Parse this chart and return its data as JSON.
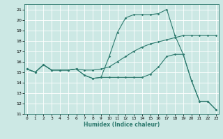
{
  "xlabel": "Humidex (Indice chaleur)",
  "ylabel": "",
  "bg_color": "#cce8e4",
  "line_color": "#2d7a6e",
  "grid_color": "#ffffff",
  "ylim": [
    11,
    21.5
  ],
  "xlim": [
    -0.3,
    23.3
  ],
  "yticks": [
    11,
    12,
    13,
    14,
    15,
    16,
    17,
    18,
    19,
    20,
    21
  ],
  "xticks": [
    0,
    1,
    2,
    3,
    4,
    5,
    6,
    7,
    8,
    9,
    10,
    11,
    12,
    13,
    14,
    15,
    16,
    17,
    18,
    19,
    20,
    21,
    22,
    23
  ],
  "line1_x": [
    0,
    1,
    2,
    3,
    4,
    5,
    6,
    7,
    8,
    9,
    10,
    11,
    12,
    13,
    14,
    15,
    16,
    17,
    18,
    19,
    20,
    21,
    22,
    23
  ],
  "line1_y": [
    15.3,
    15.0,
    15.7,
    15.2,
    15.2,
    15.2,
    15.3,
    14.7,
    14.4,
    14.5,
    16.5,
    18.8,
    20.2,
    20.5,
    20.5,
    20.5,
    20.6,
    21.0,
    18.5,
    16.7,
    14.2,
    12.2,
    12.2,
    11.4
  ],
  "line2_x": [
    0,
    1,
    2,
    3,
    4,
    5,
    6,
    7,
    8,
    9,
    10,
    11,
    12,
    13,
    14,
    15,
    16,
    17,
    18,
    19,
    20,
    21,
    22,
    23
  ],
  "line2_y": [
    15.3,
    15.0,
    15.7,
    15.2,
    15.2,
    15.2,
    15.3,
    15.2,
    15.2,
    15.3,
    15.5,
    16.0,
    16.5,
    17.0,
    17.4,
    17.7,
    17.9,
    18.1,
    18.3,
    18.5,
    18.5,
    18.5,
    18.5,
    18.5
  ],
  "line3_x": [
    0,
    1,
    2,
    3,
    4,
    5,
    6,
    7,
    8,
    9,
    10,
    11,
    12,
    13,
    14,
    15,
    16,
    17,
    18,
    19,
    20,
    21,
    22,
    23
  ],
  "line3_y": [
    15.3,
    15.0,
    15.7,
    15.2,
    15.2,
    15.2,
    15.3,
    14.7,
    14.4,
    14.5,
    14.5,
    14.5,
    14.5,
    14.5,
    14.5,
    14.8,
    15.5,
    16.5,
    16.7,
    16.7,
    14.2,
    12.2,
    12.2,
    11.4
  ]
}
